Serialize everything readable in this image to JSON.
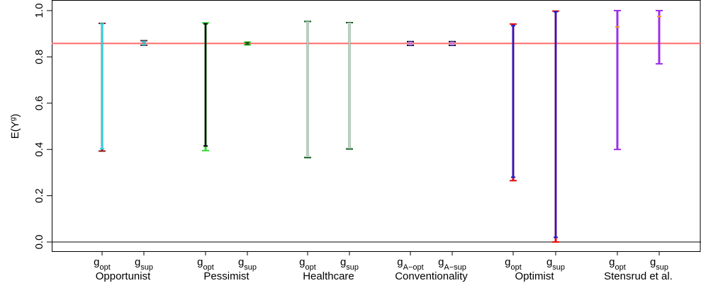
{
  "chart_data": {
    "type": "errorbar",
    "ylabel": "E(Y^g)",
    "ylim": [
      0,
      1
    ],
    "yticks": [
      0.0,
      0.2,
      0.4,
      0.6,
      0.8,
      1.0
    ],
    "ytick_labels": [
      "0.0",
      "0.2",
      "0.4",
      "0.6",
      "0.8",
      "1.0"
    ],
    "reference_line": {
      "y": 0.858,
      "color": "#ff6a6a"
    },
    "groups": [
      {
        "label": "Opportunist",
        "items": [
          {
            "label_main": "g",
            "label_sub": "opt",
            "outer": [
              0.393,
              0.945
            ],
            "outer_color": "#8b1a1a",
            "inner": [
              0.403,
              0.943
            ],
            "inner_color": "#26d9e8"
          },
          {
            "label_main": "g",
            "label_sub": "sup",
            "outer": [
              0.85,
              0.87
            ],
            "outer_color": "#5a2a2a",
            "inner": [
              0.852,
              0.866
            ],
            "inner_color": "#35c4d6"
          }
        ]
      },
      {
        "label": "Pessimist",
        "items": [
          {
            "label_main": "g",
            "label_sub": "opt",
            "outer": [
              0.395,
              0.947
            ],
            "outer_color": "#33dd33",
            "inner": [
              0.415,
              0.943
            ],
            "inner_color": "#000000"
          },
          {
            "label_main": "g",
            "label_sub": "sup",
            "outer": [
              0.852,
              0.864
            ],
            "outer_color": "#33dd33",
            "inner": [
              0.854,
              0.862
            ],
            "inner_color": "#1a5a1a"
          }
        ]
      },
      {
        "label": "Healthcare",
        "items": [
          {
            "label_main": "g",
            "label_sub": "opt",
            "outer": [
              0.365,
              0.953
            ],
            "outer_color": "#0b5a1b",
            "inner": [
              0.37,
              0.95
            ],
            "inner_color": "#c0cfc8"
          },
          {
            "label_main": "g",
            "label_sub": "sup",
            "outer": [
              0.402,
              0.948
            ],
            "outer_color": "#0b5a1b",
            "inner": [
              0.407,
              0.945
            ],
            "inner_color": "#c0cfc8"
          }
        ]
      },
      {
        "label": "Conventionality",
        "items": [
          {
            "label_main": "g",
            "label_sub": "A−opt",
            "outer": [
              0.85,
              0.866
            ],
            "outer_color": "#000033",
            "inner": [
              0.853,
              0.863
            ],
            "inner_color": "#c58de8"
          },
          {
            "label_main": "g",
            "label_sub": "A−sup",
            "outer": [
              0.85,
              0.866
            ],
            "outer_color": "#000033",
            "inner": [
              0.853,
              0.863
            ],
            "inner_color": "#c58de8"
          }
        ]
      },
      {
        "label": "Optimist",
        "items": [
          {
            "label_main": "g",
            "label_sub": "opt",
            "outer": [
              0.265,
              0.942
            ],
            "outer_color": "#dd1111",
            "inner": [
              0.28,
              0.935
            ],
            "inner_color": "#1a1ad9"
          },
          {
            "label_main": "g",
            "label_sub": "sup",
            "outer": [
              0.0,
              0.998
            ],
            "outer_color": "#dd1111",
            "inner": [
              0.02,
              0.995
            ],
            "inner_color": "#1a1ad9"
          }
        ]
      },
      {
        "label": "Stensrud et al.",
        "items": [
          {
            "label_main": "g",
            "label_sub": "opt",
            "outer": [
              0.4,
              1.0
            ],
            "outer_color": "#9b30e8",
            "point": 0.93,
            "point_color": "#ff9a1a"
          },
          {
            "label_main": "g",
            "label_sub": "sup",
            "outer": [
              0.77,
              1.0
            ],
            "outer_color": "#9b30e8",
            "point": 0.975,
            "point_color": "#ff9a1a"
          }
        ]
      }
    ]
  }
}
